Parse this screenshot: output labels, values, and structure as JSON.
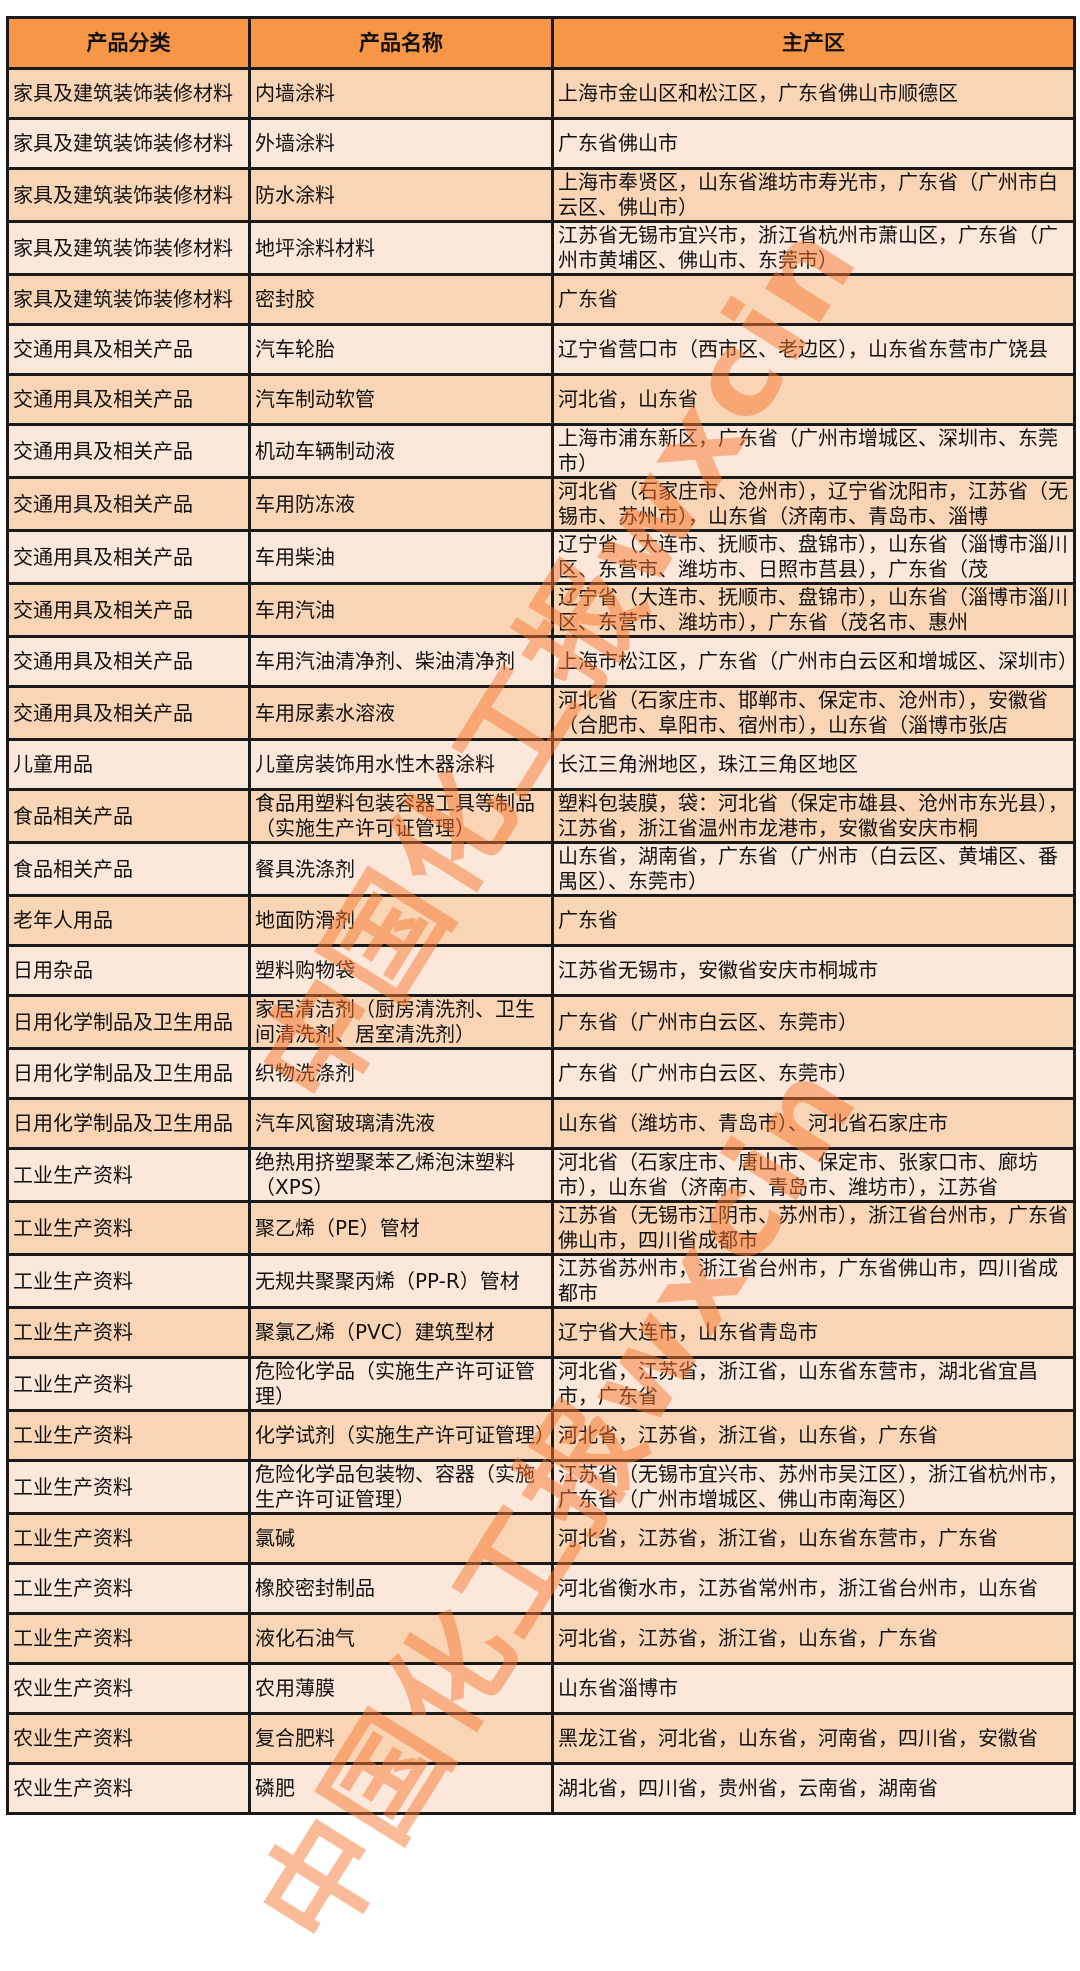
{
  "headers": [
    "产品分类",
    "产品名称",
    "主产区"
  ],
  "rows": [
    [
      "家具及建筑装饰装修材料",
      "内墙涂料",
      "上海市金山区和松江区，广东省佛山市顺德区"
    ],
    [
      "家具及建筑装饰装修材料",
      "外墙涂料",
      "广东省佛山市"
    ],
    [
      "家具及建筑装饰装修材料",
      "防水涂料",
      "上海市奉贤区，山东省潍坊市寿光市，广东省（广州市白云区、佛山市）"
    ],
    [
      "家具及建筑装饰装修材料",
      "地坪涂料材料",
      "江苏省无锡市宜兴市，浙江省杭州市萧山区，广东省（广州市黄埔区、佛山市、东莞市）"
    ],
    [
      "家具及建筑装饰装修材料",
      "密封胶",
      "广东省"
    ],
    [
      "交通用具及相关产品",
      "汽车轮胎",
      "辽宁省营口市（西市区、老边区），山东省东营市广饶县"
    ],
    [
      "交通用具及相关产品",
      "汽车制动软管",
      "河北省，山东省"
    ],
    [
      "交通用具及相关产品",
      "机动车辆制动液",
      "上海市浦东新区，广东省（广州市增城区、深圳市、东莞市）"
    ],
    [
      "交通用具及相关产品",
      "车用防冻液",
      "河北省（石家庄市、沧州市），辽宁省沈阳市，江苏省（无锡市、苏州市），山东省（济南市、青岛市、淄博"
    ],
    [
      "交通用具及相关产品",
      "车用柴油",
      "辽宁省（大连市、抚顺市、盘锦市），山东省（淄博市淄川区、东营市、潍坊市、日照市莒县），广东省（茂"
    ],
    [
      "交通用具及相关产品",
      "车用汽油",
      "辽宁省（大连市、抚顺市、盘锦市），山东省（淄博市淄川区、东营市、潍坊市），广东省（茂名市、惠州"
    ],
    [
      "交通用具及相关产品",
      "车用汽油清净剂、柴油清净剂",
      "上海市松江区，广东省（广州市白云区和增城区、深圳市）"
    ],
    [
      "交通用具及相关产品",
      "车用尿素水溶液",
      "河北省（石家庄市、邯郸市、保定市、沧州市），安徽省（合肥市、阜阳市、宿州市），山东省（淄博市张店"
    ],
    [
      "儿童用品",
      "儿童房装饰用水性木器涂料",
      "长江三角洲地区，珠江三角区地区"
    ],
    [
      "食品相关产品",
      "食品用塑料包装容器工具等制品（实施生产许可证管理）",
      "塑料包装膜，袋：河北省（保定市雄县、沧州市东光县），江苏省，浙江省温州市龙港市，安徽省安庆市桐"
    ],
    [
      "食品相关产品",
      "餐具洗涤剂",
      "山东省，湖南省，广东省（广州市（白云区、黄埔区、番禺区）、东莞市）"
    ],
    [
      "老年人用品",
      "地面防滑剂",
      "广东省"
    ],
    [
      "日用杂品",
      "塑料购物袋",
      "江苏省无锡市，安徽省安庆市桐城市"
    ],
    [
      "日用化学制品及卫生用品",
      "家居清洁剂（厨房清洗剂、卫生间清洗剂、居室清洗剂）",
      "广东省（广州市白云区、东莞市）"
    ],
    [
      "日用化学制品及卫生用品",
      "织物洗涤剂",
      "广东省（广州市白云区、东莞市）"
    ],
    [
      "日用化学制品及卫生用品",
      "汽车风窗玻璃清洗液",
      "山东省（潍坊市、青岛市）、河北省石家庄市"
    ],
    [
      "工业生产资料",
      "绝热用挤塑聚苯乙烯泡沫塑料（XPS）",
      "河北省（石家庄市、唐山市、保定市、张家口市、廊坊市），山东省（济南市、青岛市、潍坊市），江苏省"
    ],
    [
      "工业生产资料",
      "聚乙烯（PE）管材",
      "江苏省（无锡市江阴市、苏州市），浙江省台州市，广东省佛山市，四川省成都市"
    ],
    [
      "工业生产资料",
      "无规共聚聚丙烯（PP-R）管材",
      "江苏省苏州市，浙江省台州市，广东省佛山市，四川省成都市"
    ],
    [
      "工业生产资料",
      "聚氯乙烯（PVC）建筑型材",
      "辽宁省大连市，山东省青岛市"
    ],
    [
      "工业生产资料",
      "危险化学品（实施生产许可证管理）",
      "河北省，江苏省，浙江省，山东省东营市，湖北省宜昌市，广东省"
    ],
    [
      "工业生产资料",
      "化学试剂（实施生产许可证管理）",
      "河北省，江苏省，浙江省，山东省，广东省"
    ],
    [
      "工业生产资料",
      "危险化学品包装物、容器（实施生产许可证管理）",
      "江苏省（无锡市宜兴市、苏州市吴江区），浙江省杭州市，广东省（广州市增城区、佛山市南海区）"
    ],
    [
      "工业生产资料",
      "氯碱",
      "河北省，江苏省，浙江省，山东省东营市，广东省"
    ],
    [
      "工业生产资料",
      "橡胶密封制品",
      "河北省衡水市，江苏省常州市，浙江省台州市，山东省"
    ],
    [
      "工业生产资料",
      "液化石油气",
      "河北省，江苏省，浙江省，山东省，广东省"
    ],
    [
      "农业生产资料",
      "农用薄膜",
      "山东省淄博市"
    ],
    [
      "农业生产资料",
      "复合肥料",
      "黑龙江省，河北省，山东省，河南省，四川省，安徽省"
    ],
    [
      "农业生产资料",
      "磷肥",
      "湖北省，四川省，贵州省，云南省，湖南省"
    ]
  ],
  "watermark": "中国化工报wxcin",
  "colors": {
    "header": "#f79646",
    "row_dark": "#f9d5b6",
    "row_light": "#fce8da",
    "watermark": "#f77832"
  }
}
